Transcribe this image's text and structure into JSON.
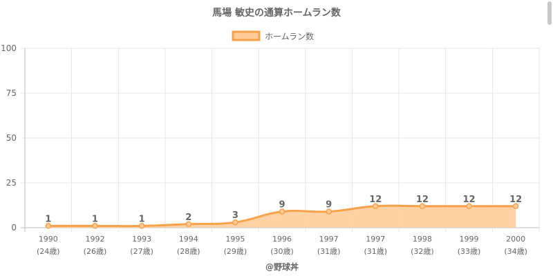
{
  "chart_data": {
    "type": "area",
    "title": "馬場 敏史の通算ホームラン数",
    "legend": {
      "label": "ホームラン数",
      "position": "top"
    },
    "categories": [
      "1990",
      "1992",
      "1993",
      "1994",
      "1995",
      "1996",
      "1997",
      "1997",
      "1998",
      "1999",
      "2000"
    ],
    "ages": [
      "(24歳)",
      "(26歳)",
      "(27歳)",
      "(28歳)",
      "(29歳)",
      "(30歳)",
      "(31歳)",
      "(31歳)",
      "(32歳)",
      "(33歳)",
      "(34歳)"
    ],
    "series": [
      {
        "name": "ホームラン数",
        "values": [
          1,
          1,
          1,
          2,
          3,
          9,
          9,
          12,
          12,
          12,
          12
        ]
      }
    ],
    "y_ticks": [
      0,
      25,
      50,
      75,
      100
    ],
    "ylim": [
      0,
      100
    ],
    "grid": true,
    "colors": {
      "line": "#f9a04a",
      "fill": "#ffcc99",
      "grid": "#e6e6e6",
      "text": "#666666"
    }
  },
  "credit": "@野球丼"
}
